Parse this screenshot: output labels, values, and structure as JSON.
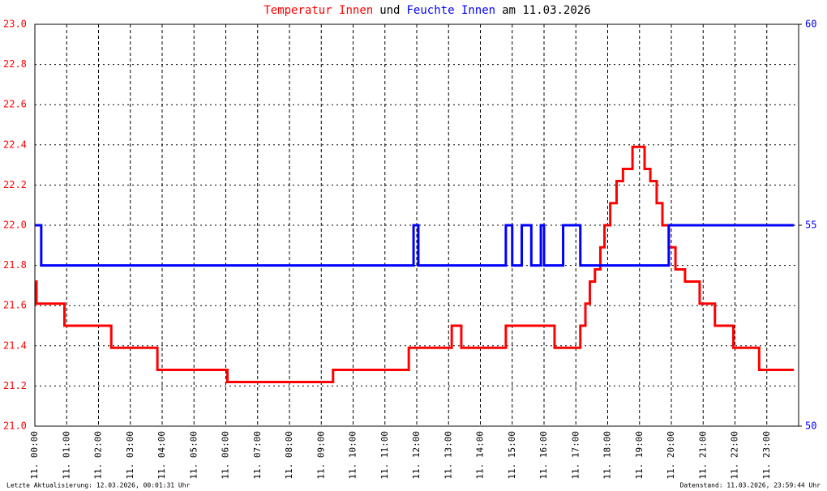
{
  "chart_data": {
    "type": "line",
    "title_parts": [
      "und",
      "am 11.03.2026"
    ],
    "footer_left": "Letzte Aktualisierung: 12.03.2026, 00:01:31 Uhr",
    "footer_right": "Datenstand: 11.03.2026, 23:59:44 Uhr",
    "xlim": [
      0,
      24
    ],
    "xticks": [
      {
        "value": 0,
        "label": "11. 00:00"
      },
      {
        "value": 1,
        "label": "11. 01:00"
      },
      {
        "value": 2,
        "label": "11. 02:00"
      },
      {
        "value": 3,
        "label": "11. 03:00"
      },
      {
        "value": 4,
        "label": "11. 04:00"
      },
      {
        "value": 5,
        "label": "11. 05:00"
      },
      {
        "value": 6,
        "label": "11. 06:00"
      },
      {
        "value": 7,
        "label": "11. 07:00"
      },
      {
        "value": 8,
        "label": "11. 08:00"
      },
      {
        "value": 9,
        "label": "11. 09:00"
      },
      {
        "value": 10,
        "label": "11. 10:00"
      },
      {
        "value": 11,
        "label": "11. 11:00"
      },
      {
        "value": 12,
        "label": "11. 12:00"
      },
      {
        "value": 13,
        "label": "11. 13:00"
      },
      {
        "value": 14,
        "label": "11. 14:00"
      },
      {
        "value": 15,
        "label": "11. 15:00"
      },
      {
        "value": 16,
        "label": "11. 16:00"
      },
      {
        "value": 17,
        "label": "11. 17:00"
      },
      {
        "value": 18,
        "label": "11. 18:00"
      },
      {
        "value": 19,
        "label": "11. 19:00"
      },
      {
        "value": 20,
        "label": "11. 20:00"
      },
      {
        "value": 21,
        "label": "11. 21:00"
      },
      {
        "value": 22,
        "label": "11. 22:00"
      },
      {
        "value": 23,
        "label": "11. 23:00"
      }
    ],
    "ylim": [
      21.0,
      23.0
    ],
    "yticks": [
      {
        "value": 21.0,
        "label": "21.0"
      },
      21.2,
      21.4,
      21.6,
      21.8,
      {
        "value": 22.0,
        "label": "22.0"
      },
      22.2,
      22.4,
      22.6,
      22.8,
      {
        "value": 23.0,
        "label": "23.0"
      }
    ],
    "y2lim": [
      50,
      60
    ],
    "y2ticks": [
      50,
      55,
      60
    ],
    "grid": true,
    "series": [
      {
        "name": "Temperatur Innen",
        "color": "#ff0000",
        "x": [
          0,
          0.05,
          0.05,
          0.93,
          0.93,
          2.4,
          2.4,
          3.85,
          3.85,
          6.05,
          6.05,
          9.37,
          9.37,
          11.75,
          11.75,
          13.1,
          13.1,
          13.4,
          13.4,
          14.8,
          14.8,
          16.33,
          16.33,
          17.14,
          17.14,
          17.3,
          17.3,
          17.44,
          17.44,
          17.6,
          17.6,
          17.77,
          17.77,
          17.9,
          17.9,
          18.08,
          18.08,
          18.28,
          18.28,
          18.48,
          18.48,
          18.78,
          18.78,
          19.16,
          19.16,
          19.34,
          19.34,
          19.54,
          19.54,
          19.72,
          19.72,
          19.92,
          19.92,
          20.13,
          20.13,
          20.43,
          20.43,
          20.89,
          20.89,
          21.37,
          21.37,
          21.95,
          21.95,
          22.76,
          22.76,
          23.85
        ],
        "values": [
          21.72,
          21.72,
          21.61,
          21.61,
          21.5,
          21.5,
          21.39,
          21.39,
          21.28,
          21.28,
          21.22,
          21.22,
          21.28,
          21.28,
          21.39,
          21.39,
          21.5,
          21.5,
          21.39,
          21.39,
          21.5,
          21.5,
          21.39,
          21.39,
          21.5,
          21.5,
          21.61,
          21.61,
          21.72,
          21.72,
          21.78,
          21.78,
          21.89,
          21.89,
          22.0,
          22.0,
          22.11,
          22.11,
          22.22,
          22.22,
          22.28,
          22.28,
          22.39,
          22.39,
          22.28,
          22.28,
          22.22,
          22.22,
          22.11,
          22.11,
          22.0,
          22.0,
          21.89,
          21.89,
          21.78,
          21.78,
          21.72,
          21.72,
          21.61,
          21.61,
          21.5,
          21.5,
          21.39,
          21.39,
          21.28,
          21.28
        ]
      },
      {
        "name": "Feuchte Innen",
        "color": "#0000ff",
        "axis": "y2",
        "x": [
          0,
          0.2,
          0.2,
          11.9,
          11.9,
          12.05,
          12.05,
          14.8,
          14.8,
          15.0,
          15.0,
          15.3,
          15.3,
          15.6,
          15.6,
          15.9,
          15.9,
          16.0,
          16.0,
          16.6,
          16.6,
          17.14,
          17.14,
          19.92,
          19.92,
          23.85
        ],
        "values": [
          55,
          55,
          54,
          54,
          55,
          55,
          54,
          54,
          55,
          55,
          54,
          54,
          55,
          55,
          54,
          54,
          55,
          55,
          54,
          54,
          55,
          55,
          54,
          54,
          55,
          55
        ]
      }
    ]
  }
}
